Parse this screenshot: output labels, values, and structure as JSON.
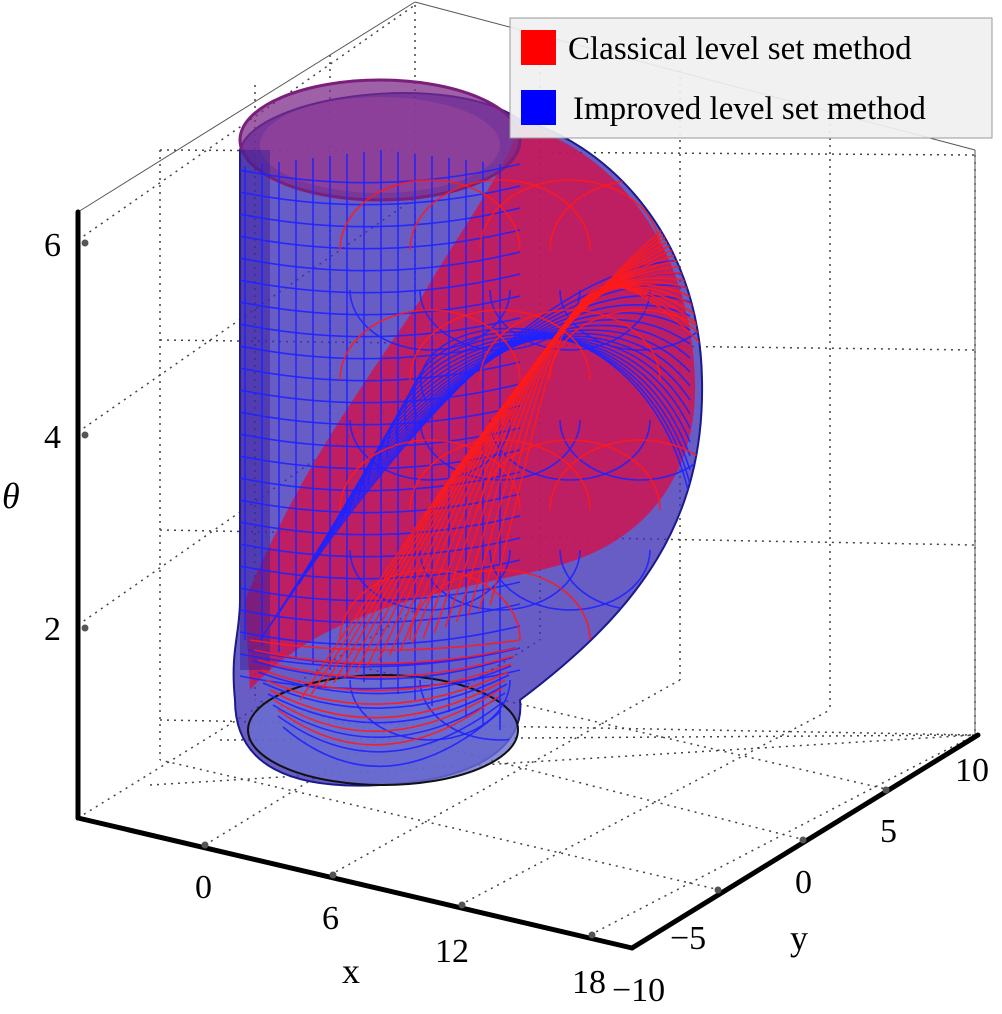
{
  "chart_data": {
    "type": "surface3d",
    "title": "",
    "xlabel": "x",
    "ylabel": "y",
    "zlabel": "θ",
    "x_ticks": [
      "0",
      "6",
      "12",
      "18"
    ],
    "y_ticks": [
      "−10",
      "−5",
      "0",
      "5",
      "10"
    ],
    "z_ticks": [
      "2",
      "4",
      "6"
    ],
    "grid": true,
    "legend_position": "top-right",
    "series": [
      {
        "name": "Classical level set method",
        "color": "#ff0000"
      },
      {
        "name": "Improved level set method",
        "color": "#0000ff"
      }
    ]
  }
}
